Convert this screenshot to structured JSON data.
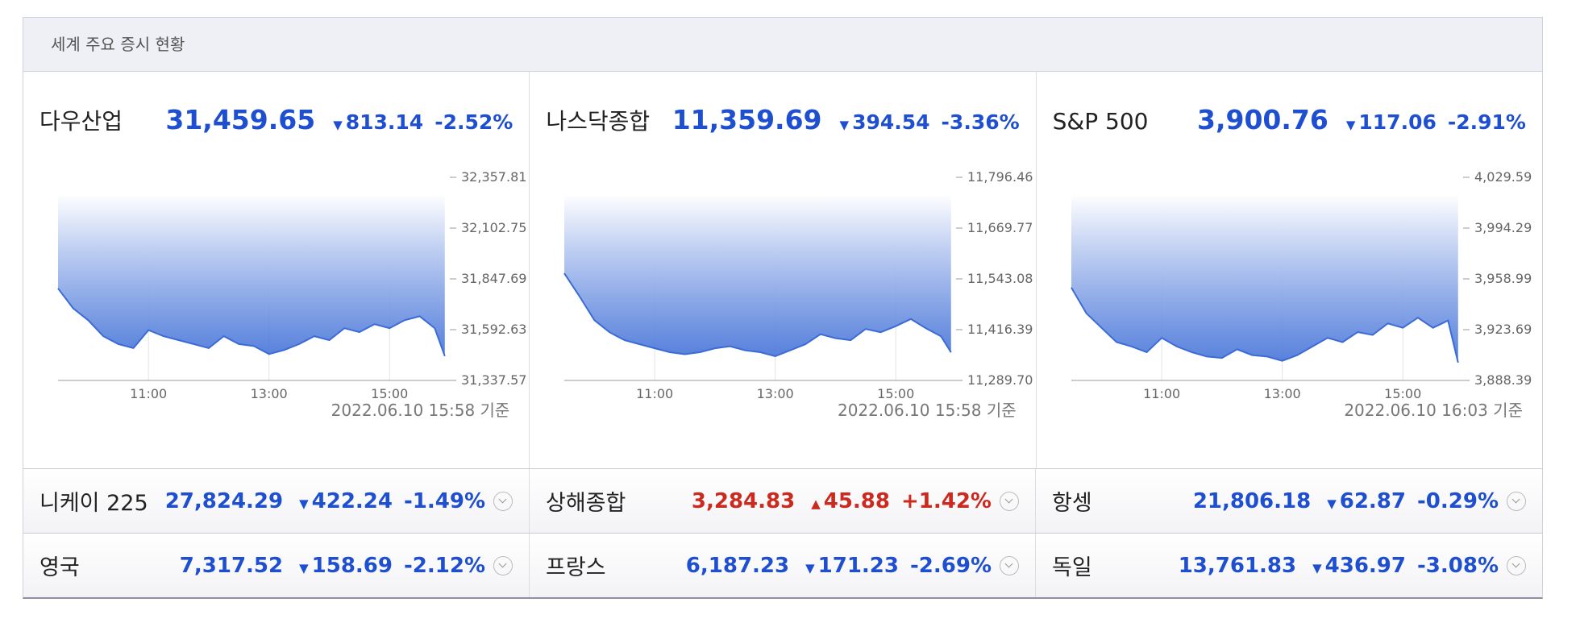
{
  "header": {
    "title": "세계 주요 증시 현황"
  },
  "panels": [
    {
      "name": "다우산업",
      "value": "31,459.65",
      "arrow": "▼",
      "change": "813.14",
      "pct": "-2.52%",
      "color": "#1f4fd1",
      "timestamp": "2022.06.10 15:58 기준",
      "chart": {
        "type": "line",
        "color": "#3a6bd6",
        "x": [
          "09:30",
          "09:45",
          "10:00",
          "10:15",
          "10:30",
          "10:45",
          "11:00",
          "11:15",
          "11:30",
          "11:45",
          "12:00",
          "12:15",
          "12:30",
          "12:45",
          "13:00",
          "13:15",
          "13:30",
          "13:45",
          "14:00",
          "14:15",
          "14:30",
          "14:45",
          "15:00",
          "15:15",
          "15:30",
          "15:45",
          "15:55"
        ],
        "values": [
          31800,
          31700,
          31640,
          31560,
          31520,
          31500,
          31590,
          31560,
          31540,
          31520,
          31500,
          31560,
          31520,
          31510,
          31470,
          31490,
          31520,
          31560,
          31540,
          31600,
          31580,
          31620,
          31600,
          31640,
          31660,
          31600,
          31459.65
        ],
        "xlim": [
          "09:30",
          "16:00"
        ],
        "xticks": [
          "11:00",
          "13:00",
          "15:00"
        ],
        "ylim": [
          31337.57,
          32357.81
        ],
        "yticks": [
          {
            "value": 31337.57,
            "label": "31,337.57"
          },
          {
            "value": 31592.63,
            "label": "31,592.63"
          },
          {
            "value": 31847.69,
            "label": "31,847.69"
          },
          {
            "value": 32102.75,
            "label": "32,102.75"
          },
          {
            "value": 32357.81,
            "label": "32,357.81"
          }
        ]
      }
    },
    {
      "name": "나스닥종합",
      "value": "11,359.69",
      "arrow": "▼",
      "change": "394.54",
      "pct": "-3.36%",
      "color": "#1f4fd1",
      "timestamp": "2022.06.10 15:58 기준",
      "chart": {
        "type": "line",
        "color": "#3a6bd6",
        "x": [
          "09:30",
          "09:45",
          "10:00",
          "10:15",
          "10:30",
          "10:45",
          "11:00",
          "11:15",
          "11:30",
          "11:45",
          "12:00",
          "12:15",
          "12:30",
          "12:45",
          "13:00",
          "13:15",
          "13:30",
          "13:45",
          "14:00",
          "14:15",
          "14:30",
          "14:45",
          "15:00",
          "15:15",
          "15:30",
          "15:45",
          "15:55"
        ],
        "values": [
          11557,
          11500,
          11440,
          11410,
          11390,
          11380,
          11370,
          11360,
          11355,
          11360,
          11370,
          11375,
          11365,
          11360,
          11350,
          11365,
          11380,
          11405,
          11395,
          11390,
          11418,
          11410,
          11425,
          11443,
          11420,
          11400,
          11359.69
        ],
        "xlim": [
          "09:30",
          "16:00"
        ],
        "xticks": [
          "11:00",
          "13:00",
          "15:00"
        ],
        "ylim": [
          11289.7,
          11796.46
        ],
        "yticks": [
          {
            "value": 11289.7,
            "label": "11,289.70"
          },
          {
            "value": 11416.39,
            "label": "11,416.39"
          },
          {
            "value": 11543.08,
            "label": "11,543.08"
          },
          {
            "value": 11669.77,
            "label": "11,669.77"
          },
          {
            "value": 11796.46,
            "label": "11,796.46"
          }
        ]
      }
    },
    {
      "name": "S&P 500",
      "value": "3,900.76",
      "arrow": "▼",
      "change": "117.06",
      "pct": "-2.91%",
      "color": "#1f4fd1",
      "timestamp": "2022.06.10 16:03 기준",
      "chart": {
        "type": "line",
        "color": "#3a6bd6",
        "x": [
          "09:30",
          "09:45",
          "10:00",
          "10:15",
          "10:30",
          "10:45",
          "11:00",
          "11:15",
          "11:30",
          "11:45",
          "12:00",
          "12:15",
          "12:30",
          "12:45",
          "13:00",
          "13:15",
          "13:30",
          "13:45",
          "14:00",
          "14:15",
          "14:30",
          "14:45",
          "15:00",
          "15:15",
          "15:30",
          "15:45",
          "15:55"
        ],
        "values": [
          3953,
          3935,
          3925,
          3915,
          3912,
          3908,
          3918,
          3912,
          3908,
          3905,
          3904,
          3910,
          3906,
          3905,
          3902,
          3906,
          3912,
          3918,
          3915,
          3922,
          3920,
          3928,
          3925,
          3932,
          3925,
          3930,
          3900.76
        ],
        "xlim": [
          "09:30",
          "16:00"
        ],
        "xticks": [
          "11:00",
          "13:00",
          "15:00"
        ],
        "ylim": [
          3888.39,
          4029.59
        ],
        "yticks": [
          {
            "value": 3888.39,
            "label": "3,888.39"
          },
          {
            "value": 3923.69,
            "label": "3,923.69"
          },
          {
            "value": 3958.99,
            "label": "3,958.99"
          },
          {
            "value": 3994.29,
            "label": "3,994.29"
          },
          {
            "value": 4029.59,
            "label": "4,029.59"
          }
        ]
      }
    }
  ],
  "rows": [
    [
      {
        "name": "니케이 225",
        "value": "27,824.29",
        "arrow": "▼",
        "change": "422.24",
        "pct": "-1.49%",
        "color": "#1f4fd1"
      },
      {
        "name": "상해종합",
        "value": "3,284.83",
        "arrow": "▲",
        "change": "45.88",
        "pct": "+1.42%",
        "color": "#cc2a1e"
      },
      {
        "name": "항셍",
        "value": "21,806.18",
        "arrow": "▼",
        "change": "62.87",
        "pct": "-0.29%",
        "color": "#1f4fd1"
      }
    ],
    [
      {
        "name": "영국",
        "value": "7,317.52",
        "arrow": "▼",
        "change": "158.69",
        "pct": "-2.12%",
        "color": "#1f4fd1"
      },
      {
        "name": "프랑스",
        "value": "6,187.23",
        "arrow": "▼",
        "change": "171.23",
        "pct": "-2.69%",
        "color": "#1f4fd1"
      },
      {
        "name": "독일",
        "value": "13,761.83",
        "arrow": "▼",
        "change": "436.97",
        "pct": "-3.08%",
        "color": "#1f4fd1"
      }
    ]
  ]
}
